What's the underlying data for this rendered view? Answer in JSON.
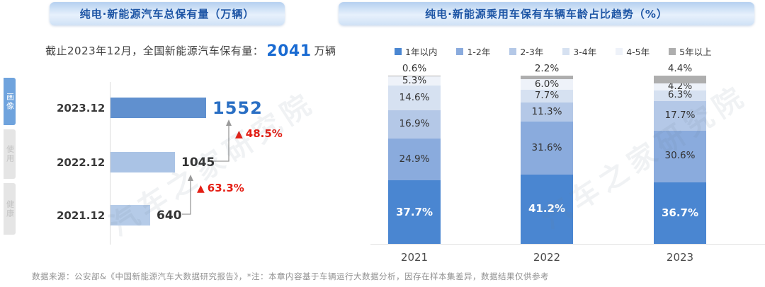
{
  "tabs": {
    "items": [
      {
        "id": "huaxiang",
        "label": "画像",
        "active": true
      },
      {
        "id": "shiyong",
        "label": "使用",
        "active": false
      },
      {
        "id": "jiankang",
        "label": "健康",
        "active": false
      }
    ]
  },
  "left_panel": {
    "title": "纯电·新能源汽车总保有量（万辆）",
    "subtitle_prefix": "截止2023年12月，全国新能源汽车保有量：",
    "subtitle_value": "2041",
    "subtitle_suffix": "万辆"
  },
  "right_panel": {
    "title": "纯电·新能源乘用车保有车辆车龄占比趋势（%）"
  },
  "chart_data": [
    {
      "type": "bar",
      "orientation": "horizontal",
      "title": "纯电·新能源汽车总保有量（万辆）",
      "categories": [
        "2023.12",
        "2022.12",
        "2021.12"
      ],
      "values": [
        1552,
        1045,
        640
      ],
      "bar_colors": [
        "#6090cf",
        "#aac3e5",
        "#b5cbe8"
      ],
      "value_colors": [
        "#2a6fc4",
        "#333333",
        "#333333"
      ],
      "xlabel": "",
      "ylabel": "",
      "grid": false,
      "annotations": [
        {
          "label": "48.5%",
          "symbol": "▲",
          "between": [
            "2022.12",
            "2023.12"
          ]
        },
        {
          "label": "63.3%",
          "symbol": "▲",
          "between": [
            "2021.12",
            "2022.12"
          ]
        }
      ],
      "annotation_color": "#e41e14"
    },
    {
      "type": "bar",
      "stacked": true,
      "percent": true,
      "title": "纯电·新能源乘用车保有车辆车龄占比趋势（%）",
      "categories": [
        "2021",
        "2022",
        "2023"
      ],
      "series": [
        {
          "name": "1年以内",
          "color": "#4a86d1",
          "values": [
            37.7,
            41.2,
            36.7
          ]
        },
        {
          "name": "1-2年",
          "color": "#8aabdd",
          "values": [
            24.9,
            31.6,
            30.6
          ]
        },
        {
          "name": "2-3年",
          "color": "#b4c8e7",
          "values": [
            16.9,
            11.3,
            17.7
          ]
        },
        {
          "name": "3-4年",
          "color": "#d6e1f1",
          "values": [
            14.6,
            7.7,
            6.3
          ]
        },
        {
          "name": "4-5年",
          "color": "#eef2f9",
          "values": [
            5.3,
            6.0,
            4.2
          ]
        },
        {
          "name": "5年以上",
          "color": "#aeaeae",
          "values": [
            0.6,
            2.2,
            4.4
          ]
        }
      ],
      "legend_position": "top",
      "ylim": [
        0,
        100
      ],
      "grid": false
    }
  ],
  "footer": {
    "note": "数据来源：公安部&《中国新能源汽车大数据研究报告》，*注：本章内容基于车辆运行大数据分析，因存在样本集差异，数据结果仅供参考"
  },
  "watermark": "汽车之家研究院"
}
